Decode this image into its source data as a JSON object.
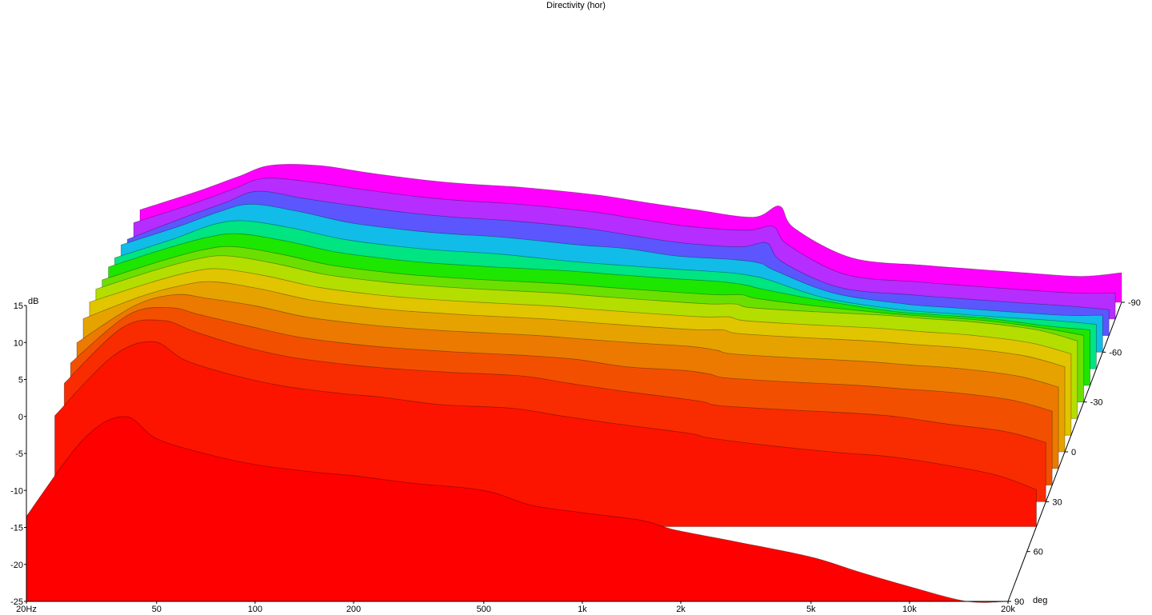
{
  "chart_data": {
    "type": "area",
    "title": "Directivity (hor)",
    "ylabel": "dB",
    "zlabel": "deg",
    "x_scale": "log",
    "xlim": [
      20,
      20000
    ],
    "ylim": [
      -25,
      15
    ],
    "x_ticks": [
      {
        "value": 20,
        "label": "20Hz"
      },
      {
        "value": 50,
        "label": "50"
      },
      {
        "value": 100,
        "label": "100"
      },
      {
        "value": 200,
        "label": "200"
      },
      {
        "value": 500,
        "label": "500"
      },
      {
        "value": 1000,
        "label": "1k"
      },
      {
        "value": 2000,
        "label": "2k"
      },
      {
        "value": 5000,
        "label": "5k"
      },
      {
        "value": 10000,
        "label": "10k"
      },
      {
        "value": 20000,
        "label": "20k"
      }
    ],
    "y_ticks": [
      15,
      10,
      5,
      0,
      -5,
      -10,
      -15,
      -20,
      -25
    ],
    "z_ticks": [
      {
        "value": -90,
        "label": "-90"
      },
      {
        "value": -60,
        "label": "-60"
      },
      {
        "value": -30,
        "label": "-30"
      },
      {
        "value": 0,
        "label": "0"
      },
      {
        "value": 30,
        "label": "30"
      },
      {
        "value": 60,
        "label": "60"
      },
      {
        "value": 90,
        "label": "90"
      }
    ],
    "freq_points": [
      20,
      30,
      40,
      50,
      70,
      100,
      150,
      200,
      300,
      500,
      700,
      1000,
      1500,
      1800,
      2000,
      3000,
      5000,
      7000,
      10000,
      15000,
      20000
    ],
    "series": [
      {
        "angle": -90,
        "color": "#ff00ff",
        "values": [
          -12.5,
          -10,
          -8,
          -6.5,
          -6.5,
          -7.5,
          -8.5,
          -9,
          -9.5,
          -10.5,
          -11.5,
          -12.5,
          -13.5,
          -12,
          -15,
          -19,
          -20,
          -20.5,
          -21,
          -21.5,
          -21
        ]
      },
      {
        "angle": -80,
        "color": "#b52dff",
        "values": [
          -12,
          -9.5,
          -7.5,
          -6,
          -6.5,
          -7.5,
          -8.5,
          -9,
          -9.5,
          -10.5,
          -11.5,
          -12.5,
          -13,
          -12.5,
          -15,
          -19,
          -20,
          -20.5,
          -21,
          -21.5,
          -21.5
        ]
      },
      {
        "angle": -70,
        "color": "#5c56ff",
        "values": [
          -12,
          -9,
          -7,
          -5.5,
          -6.5,
          -7.5,
          -8.5,
          -9,
          -9.5,
          -10.5,
          -11.5,
          -12.5,
          -13,
          -12.5,
          -15,
          -18.5,
          -19.5,
          -20,
          -20.5,
          -21,
          -21.5
        ]
      },
      {
        "angle": -60,
        "color": "#11bce8",
        "values": [
          -10.5,
          -8,
          -6,
          -5,
          -6,
          -7.5,
          -8.5,
          -9,
          -9.5,
          -10.5,
          -11,
          -12,
          -12.5,
          -13,
          -14,
          -17,
          -18.5,
          -19,
          -19.5,
          -20,
          -20
        ]
      },
      {
        "angle": -50,
        "color": "#00e482",
        "values": [
          -10,
          -7.5,
          -5.5,
          -5,
          -6,
          -7.5,
          -8.5,
          -9,
          -9.5,
          -10.5,
          -11,
          -11.5,
          -12,
          -12.5,
          -13,
          -15.5,
          -17,
          -17.5,
          -18,
          -18.5,
          -19
        ]
      },
      {
        "angle": -40,
        "color": "#1de600",
        "values": [
          -9,
          -6.5,
          -5,
          -4.5,
          -5.5,
          -7,
          -8,
          -8.5,
          -9,
          -9.5,
          -10,
          -10.5,
          -11,
          -11.5,
          -12,
          -13.5,
          -15,
          -15.5,
          -16,
          -17,
          -17.5
        ]
      },
      {
        "angle": -30,
        "color": "#6be000",
        "values": [
          -8.5,
          -6,
          -4.5,
          -4,
          -5,
          -6.5,
          -7.5,
          -8,
          -8.5,
          -9,
          -9.5,
          -10,
          -10.5,
          -10.5,
          -11,
          -12,
          -13,
          -13.5,
          -14,
          -15,
          -16
        ]
      },
      {
        "angle": -20,
        "color": "#b4de00",
        "values": [
          -7.5,
          -5,
          -3.5,
          -3,
          -4,
          -5.5,
          -6.5,
          -7,
          -7.5,
          -8,
          -8.5,
          -9,
          -9.5,
          -9.5,
          -10,
          -10.5,
          -11,
          -11.5,
          -12,
          -13,
          -14.5
        ]
      },
      {
        "angle": -10,
        "color": "#e0c500",
        "values": [
          -7,
          -4.5,
          -3,
          -2.5,
          -3.5,
          -5,
          -6,
          -6.5,
          -7,
          -7.5,
          -8,
          -8.5,
          -9,
          -9,
          -9.5,
          -10,
          -10.5,
          -11,
          -11.5,
          -12.5,
          -14
        ]
      },
      {
        "angle": 0,
        "color": "#e6a300",
        "values": [
          -7,
          -4,
          -2.5,
          -2,
          -3,
          -4.5,
          -5.5,
          -6,
          -6.5,
          -7,
          -7.5,
          -8,
          -8.5,
          -8.5,
          -9,
          -9.5,
          -10,
          -10.5,
          -11,
          -12,
          -13.5
        ]
      },
      {
        "angle": 10,
        "color": "#ec7a00",
        "values": [
          -8,
          -3,
          -1.5,
          -2,
          -3,
          -4.5,
          -5.5,
          -6,
          -6.5,
          -7,
          -7.5,
          -8,
          -8.5,
          -9,
          -9.5,
          -10,
          -10.5,
          -11,
          -11.5,
          -12.5,
          -14
        ]
      },
      {
        "angle": 20,
        "color": "#f25000",
        "values": [
          -8.5,
          -2,
          -1,
          -2,
          -3.5,
          -5,
          -6,
          -6.5,
          -7,
          -7.5,
          -8,
          -9,
          -9.5,
          -10,
          -10.5,
          -11,
          -11.5,
          -12,
          -12.5,
          -13.5,
          -15
        ]
      },
      {
        "angle": 30,
        "color": "#f82c00",
        "values": [
          -9,
          -1.5,
          -0.5,
          -2,
          -4,
          -5.5,
          -6.5,
          -7,
          -7.5,
          -8,
          -9,
          -10,
          -11,
          -11.5,
          -12,
          -12.5,
          -13,
          -13.5,
          -14.5,
          -15.5,
          -17
        ]
      },
      {
        "angle": 45,
        "color": "#fc1400",
        "values": [
          -10,
          -2,
          0,
          -2.5,
          -4.5,
          -6,
          -7,
          -7.5,
          -8.5,
          -9,
          -10,
          -11,
          -12,
          -12.5,
          -13,
          -14,
          -15,
          -15.5,
          -16.5,
          -18,
          -20
        ]
      },
      {
        "angle": 90,
        "color": "#ff0000",
        "values": [
          -13.5,
          -3,
          0,
          -3,
          -5,
          -6.5,
          -7.5,
          -8,
          -9,
          -10,
          -12,
          -13,
          -14,
          -15,
          -15.5,
          -17,
          -19,
          -21,
          -23,
          -26,
          -28
        ]
      }
    ]
  }
}
